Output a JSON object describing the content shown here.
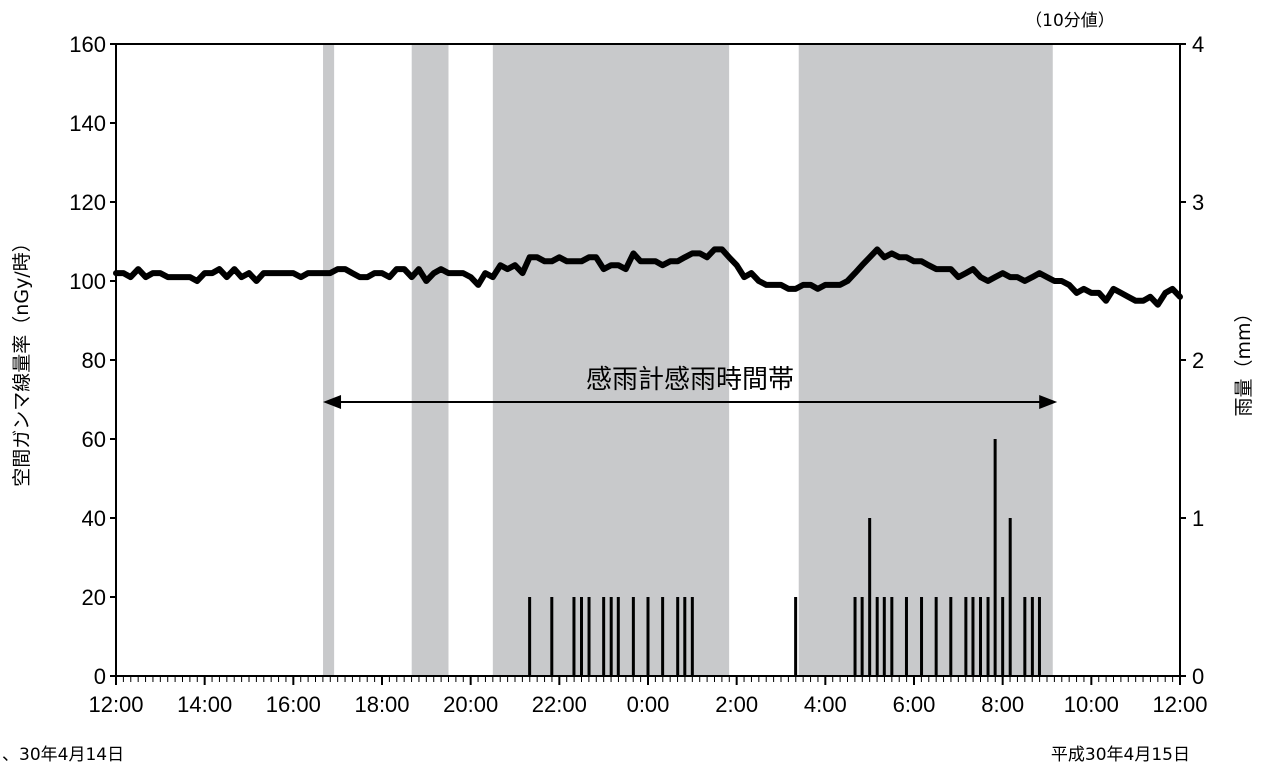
{
  "chart_data": {
    "type": "line",
    "unit_note": "（10分値）",
    "y_left_label": "空間ガンマ線量率（nGy/時）",
    "y_right_label": "雨量（mm）",
    "ylim_left": [
      0,
      160
    ],
    "ylim_right": [
      0,
      4
    ],
    "y_left_ticks": [
      "0",
      "20",
      "40",
      "60",
      "80",
      "100",
      "120",
      "140",
      "160"
    ],
    "y_right_ticks": [
      "0",
      "1",
      "2",
      "3",
      "4"
    ],
    "x_tick_labels": [
      "12:00",
      "14:00",
      "16:00",
      "18:00",
      "20:00",
      "22:00",
      "0:00",
      "2:00",
      "4:00",
      "6:00",
      "8:00",
      "10:00",
      "12:00"
    ],
    "x_range_hours": [
      0,
      24
    ],
    "date_left": "、30年4月14日",
    "date_right": "平成30年4月15日",
    "annotation": "感雨計感雨時間帯",
    "annotation_span_hours": [
      4.67,
      21.23
    ],
    "rain_detection_bands_hours": [
      [
        4.67,
        4.92
      ],
      [
        6.67,
        7.5
      ],
      [
        8.5,
        13.83
      ],
      [
        15.4,
        21.13
      ]
    ],
    "series": [
      {
        "kind": "line",
        "axis": "left",
        "x_hours": [
          0,
          0.17,
          0.33,
          0.5,
          0.67,
          0.83,
          1,
          1.17,
          1.33,
          1.5,
          1.67,
          1.83,
          2,
          2.17,
          2.33,
          2.5,
          2.67,
          2.83,
          3,
          3.17,
          3.33,
          3.5,
          3.67,
          3.83,
          4,
          4.17,
          4.33,
          4.5,
          4.67,
          4.83,
          5,
          5.17,
          5.33,
          5.5,
          5.67,
          5.83,
          6,
          6.17,
          6.33,
          6.5,
          6.67,
          6.83,
          7,
          7.17,
          7.33,
          7.5,
          7.67,
          7.83,
          8,
          8.17,
          8.33,
          8.5,
          8.67,
          8.83,
          9,
          9.17,
          9.33,
          9.5,
          9.67,
          9.83,
          10,
          10.17,
          10.33,
          10.5,
          10.67,
          10.83,
          11,
          11.17,
          11.33,
          11.5,
          11.67,
          11.83,
          12,
          12.17,
          12.33,
          12.5,
          12.67,
          12.83,
          13,
          13.17,
          13.33,
          13.5,
          13.67,
          13.83,
          14,
          14.17,
          14.33,
          14.5,
          14.67,
          14.83,
          15,
          15.17,
          15.33,
          15.5,
          15.67,
          15.83,
          16,
          16.17,
          16.33,
          16.5,
          16.67,
          16.83,
          17,
          17.17,
          17.33,
          17.5,
          17.67,
          17.83,
          18,
          18.17,
          18.33,
          18.5,
          18.67,
          18.83,
          19,
          19.17,
          19.33,
          19.5,
          19.67,
          19.83,
          20,
          20.17,
          20.33,
          20.5,
          20.67,
          20.83,
          21,
          21.17,
          21.33,
          21.5,
          21.67,
          21.83,
          22,
          22.17,
          22.33,
          22.5,
          22.67,
          22.83,
          23,
          23.17,
          23.33,
          23.5,
          23.67,
          23.83,
          24
        ],
        "values": [
          102,
          102,
          101,
          103,
          101,
          102,
          102,
          101,
          101,
          101,
          101,
          100,
          102,
          102,
          103,
          101,
          103,
          101,
          102,
          100,
          102,
          102,
          102,
          102,
          102,
          101,
          102,
          102,
          102,
          102,
          103,
          103,
          102,
          101,
          101,
          102,
          102,
          101,
          103,
          103,
          101,
          103,
          100,
          102,
          103,
          102,
          102,
          102,
          101,
          99,
          102,
          101,
          104,
          103,
          104,
          102,
          106,
          106,
          105,
          105,
          106,
          105,
          105,
          105,
          106,
          106,
          103,
          104,
          104,
          103,
          107,
          105,
          105,
          105,
          104,
          105,
          105,
          106,
          107,
          107,
          106,
          108,
          108,
          106,
          104,
          101,
          102,
          100,
          99,
          99,
          99,
          98,
          98,
          99,
          99,
          98,
          99,
          99,
          99,
          100,
          102,
          104,
          106,
          108,
          106,
          107,
          106,
          106,
          105,
          105,
          104,
          103,
          103,
          103,
          101,
          102,
          103,
          101,
          100,
          101,
          102,
          101,
          101,
          100,
          101,
          102,
          101,
          100,
          100,
          99,
          97,
          98,
          97,
          97,
          95,
          98,
          97,
          96,
          95,
          95,
          96,
          94,
          97,
          98,
          96
        ]
      },
      {
        "kind": "bars",
        "axis": "right",
        "x_hours": [
          9.33,
          9.83,
          10.33,
          10.5,
          10.67,
          11,
          11.17,
          11.33,
          11.67,
          12,
          12.33,
          12.67,
          12.83,
          13,
          15.33,
          16.67,
          16.83,
          17,
          17.17,
          17.33,
          17.5,
          17.83,
          18.17,
          18.5,
          18.83,
          19.17,
          19.33,
          19.5,
          19.67,
          19.83,
          20,
          20.17,
          20.5,
          20.67,
          20.83
        ],
        "values": [
          0.5,
          0.5,
          0.5,
          0.5,
          0.5,
          0.5,
          0.5,
          0.5,
          0.5,
          0.5,
          0.5,
          0.5,
          0.5,
          0.5,
          0.5,
          0.5,
          0.5,
          1.0,
          0.5,
          0.5,
          0.5,
          0.5,
          0.5,
          0.5,
          0.5,
          0.5,
          0.5,
          0.5,
          0.5,
          1.5,
          0.5,
          1.0,
          0.5,
          0.5,
          0.5
        ]
      }
    ]
  }
}
